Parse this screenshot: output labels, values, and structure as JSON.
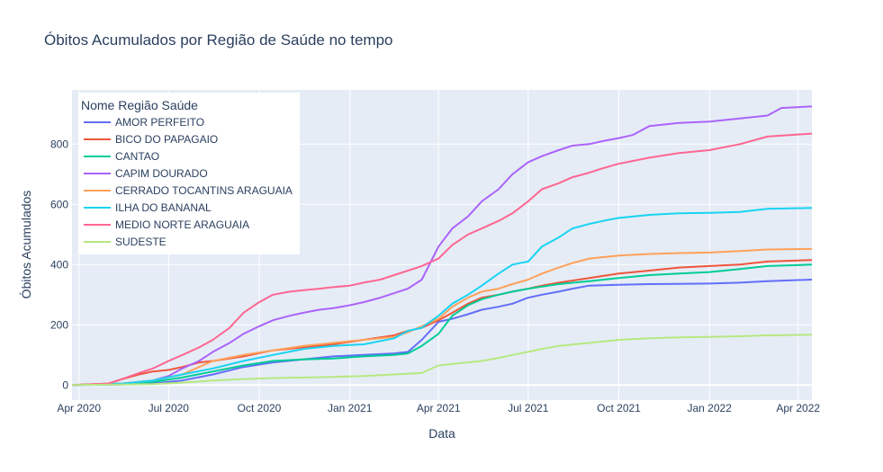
{
  "chart_data": {
    "type": "line",
    "title": "Óbitos Acumulados por Região de Saúde no tempo",
    "xlabel": "Data",
    "ylabel": "Óbitos Acumulados",
    "xlim": [
      "2020-03-25",
      "2022-04-15"
    ],
    "ylim": [
      -50,
      980
    ],
    "x_ticks": [
      {
        "date": "2020-04-01",
        "label": "Apr 2020"
      },
      {
        "date": "2020-07-01",
        "label": "Jul 2020"
      },
      {
        "date": "2020-10-01",
        "label": "Oct 2020"
      },
      {
        "date": "2021-01-01",
        "label": "Jan 2021"
      },
      {
        "date": "2021-04-01",
        "label": "Apr 2021"
      },
      {
        "date": "2021-07-01",
        "label": "Jul 2021"
      },
      {
        "date": "2021-10-01",
        "label": "Oct 2021"
      },
      {
        "date": "2022-01-01",
        "label": "Jan 2022"
      },
      {
        "date": "2022-04-01",
        "label": "Apr 2022"
      }
    ],
    "y_ticks": [
      0,
      200,
      400,
      600,
      800
    ],
    "grid": true,
    "legend": {
      "title": "Nome Região Saúde",
      "placement": "top-left"
    },
    "series": [
      {
        "name": "AMOR PERFEITO",
        "color": "#636efa",
        "x": [
          "2020-03-25",
          "2020-05-15",
          "2020-06-15",
          "2020-07-15",
          "2020-08-15",
          "2020-09-15",
          "2020-10-15",
          "2020-11-15",
          "2020-12-15",
          "2021-01-15",
          "2021-02-15",
          "2021-03-01",
          "2021-03-15",
          "2021-04-01",
          "2021-04-15",
          "2021-05-01",
          "2021-05-15",
          "2021-06-01",
          "2021-06-15",
          "2021-07-01",
          "2021-07-15",
          "2021-08-01",
          "2021-08-15",
          "2021-09-01",
          "2021-10-01",
          "2021-11-01",
          "2021-12-01",
          "2022-01-01",
          "2022-02-01",
          "2022-03-01",
          "2022-04-15"
        ],
        "y": [
          0,
          2,
          5,
          15,
          35,
          60,
          75,
          85,
          95,
          100,
          105,
          110,
          150,
          210,
          220,
          235,
          250,
          260,
          270,
          290,
          300,
          310,
          320,
          330,
          333,
          335,
          336,
          337,
          340,
          345,
          350
        ]
      },
      {
        "name": "BICO DO PAPAGAIO",
        "color": "#ef553b",
        "x": [
          "2020-03-25",
          "2020-05-01",
          "2020-05-15",
          "2020-06-01",
          "2020-06-15",
          "2020-07-01",
          "2020-07-15",
          "2020-08-01",
          "2020-08-15",
          "2020-09-15",
          "2020-10-15",
          "2020-11-15",
          "2020-12-15",
          "2021-01-15",
          "2021-02-15",
          "2021-03-01",
          "2021-03-15",
          "2021-04-01",
          "2021-04-15",
          "2021-05-01",
          "2021-05-15",
          "2021-06-01",
          "2021-06-15",
          "2021-07-01",
          "2021-07-15",
          "2021-08-01",
          "2021-09-01",
          "2021-10-01",
          "2021-11-01",
          "2021-12-01",
          "2022-01-01",
          "2022-02-01",
          "2022-03-01",
          "2022-04-15"
        ],
        "y": [
          0,
          5,
          20,
          35,
          45,
          50,
          60,
          75,
          80,
          95,
          115,
          125,
          135,
          150,
          165,
          180,
          190,
          215,
          240,
          270,
          290,
          300,
          310,
          320,
          330,
          340,
          355,
          370,
          380,
          390,
          395,
          400,
          410,
          415
        ]
      },
      {
        "name": "CANTAO",
        "color": "#00cc96",
        "x": [
          "2020-03-25",
          "2020-05-15",
          "2020-06-15",
          "2020-07-15",
          "2020-08-15",
          "2020-09-15",
          "2020-10-15",
          "2020-11-15",
          "2020-12-15",
          "2021-01-15",
          "2021-02-15",
          "2021-03-01",
          "2021-03-15",
          "2021-04-01",
          "2021-04-15",
          "2021-05-01",
          "2021-05-15",
          "2021-06-01",
          "2021-06-15",
          "2021-07-01",
          "2021-08-01",
          "2021-09-01",
          "2021-10-01",
          "2021-11-01",
          "2021-12-01",
          "2022-01-01",
          "2022-02-01",
          "2022-03-01",
          "2022-04-15"
        ],
        "y": [
          0,
          3,
          10,
          25,
          45,
          65,
          80,
          85,
          88,
          95,
          100,
          105,
          130,
          170,
          230,
          265,
          285,
          300,
          310,
          320,
          335,
          345,
          355,
          365,
          370,
          375,
          385,
          395,
          400
        ]
      },
      {
        "name": "CAPIM DOURADO",
        "color": "#ab63fa",
        "x": [
          "2020-03-25",
          "2020-05-15",
          "2020-06-15",
          "2020-07-01",
          "2020-07-15",
          "2020-08-01",
          "2020-08-15",
          "2020-09-01",
          "2020-09-15",
          "2020-10-01",
          "2020-10-15",
          "2020-11-01",
          "2020-11-15",
          "2020-12-01",
          "2020-12-15",
          "2021-01-01",
          "2021-01-15",
          "2021-02-01",
          "2021-02-15",
          "2021-03-01",
          "2021-03-15",
          "2021-04-01",
          "2021-04-15",
          "2021-05-01",
          "2021-05-15",
          "2021-06-01",
          "2021-06-15",
          "2021-07-01",
          "2021-07-15",
          "2021-08-01",
          "2021-08-15",
          "2021-09-01",
          "2021-09-15",
          "2021-10-01",
          "2021-10-15",
          "2021-11-01",
          "2021-12-01",
          "2022-01-01",
          "2022-02-01",
          "2022-03-01",
          "2022-03-15",
          "2022-04-15"
        ],
        "y": [
          0,
          5,
          15,
          30,
          55,
          80,
          110,
          140,
          170,
          195,
          215,
          230,
          240,
          250,
          255,
          265,
          275,
          290,
          305,
          320,
          350,
          460,
          520,
          560,
          610,
          650,
          700,
          740,
          760,
          780,
          795,
          800,
          810,
          820,
          830,
          860,
          870,
          875,
          885,
          895,
          920,
          925
        ]
      },
      {
        "name": "CERRADO TOCANTINS ARAGUAIA",
        "color": "#ffa15a",
        "x": [
          "2020-03-25",
          "2020-05-15",
          "2020-06-15",
          "2020-07-15",
          "2020-08-01",
          "2020-08-15",
          "2020-09-15",
          "2020-10-15",
          "2020-11-15",
          "2020-12-15",
          "2021-01-15",
          "2021-02-15",
          "2021-03-01",
          "2021-03-15",
          "2021-04-01",
          "2021-04-15",
          "2021-05-01",
          "2021-05-15",
          "2021-06-01",
          "2021-06-15",
          "2021-07-01",
          "2021-07-15",
          "2021-08-01",
          "2021-08-15",
          "2021-09-01",
          "2021-10-01",
          "2021-11-01",
          "2021-12-01",
          "2022-01-01",
          "2022-02-01",
          "2022-03-01",
          "2022-04-15"
        ],
        "y": [
          0,
          5,
          15,
          35,
          60,
          80,
          100,
          115,
          130,
          140,
          150,
          160,
          175,
          195,
          220,
          260,
          290,
          310,
          320,
          335,
          350,
          370,
          390,
          405,
          420,
          430,
          435,
          438,
          440,
          445,
          450,
          452
        ]
      },
      {
        "name": "ILHA DO BANANAL",
        "color": "#19d3f3",
        "x": [
          "2020-03-25",
          "2020-05-15",
          "2020-06-15",
          "2020-07-15",
          "2020-08-15",
          "2020-09-15",
          "2020-10-15",
          "2020-11-15",
          "2020-12-15",
          "2021-01-15",
          "2021-02-15",
          "2021-03-01",
          "2021-03-15",
          "2021-04-01",
          "2021-04-15",
          "2021-05-01",
          "2021-05-15",
          "2021-06-01",
          "2021-06-15",
          "2021-07-01",
          "2021-07-15",
          "2021-08-01",
          "2021-08-15",
          "2021-09-01",
          "2021-09-15",
          "2021-10-01",
          "2021-11-01",
          "2021-12-01",
          "2022-01-01",
          "2022-02-01",
          "2022-03-01",
          "2022-04-15"
        ],
        "y": [
          0,
          5,
          15,
          35,
          55,
          80,
          100,
          120,
          130,
          135,
          155,
          180,
          190,
          230,
          270,
          300,
          330,
          370,
          400,
          410,
          460,
          490,
          520,
          535,
          545,
          555,
          565,
          570,
          572,
          575,
          585,
          588
        ]
      },
      {
        "name": "MEDIO NORTE ARAGUAIA",
        "color": "#ff6692",
        "x": [
          "2020-03-25",
          "2020-05-01",
          "2020-05-15",
          "2020-06-01",
          "2020-06-15",
          "2020-07-01",
          "2020-07-15",
          "2020-08-01",
          "2020-08-15",
          "2020-09-01",
          "2020-09-15",
          "2020-10-01",
          "2020-10-15",
          "2020-11-01",
          "2020-11-15",
          "2020-12-01",
          "2020-12-15",
          "2021-01-01",
          "2021-01-15",
          "2021-02-01",
          "2021-02-15",
          "2021-03-01",
          "2021-03-15",
          "2021-04-01",
          "2021-04-15",
          "2021-05-01",
          "2021-05-15",
          "2021-06-01",
          "2021-06-15",
          "2021-07-01",
          "2021-07-15",
          "2021-08-01",
          "2021-08-15",
          "2021-09-01",
          "2021-09-15",
          "2021-10-01",
          "2021-11-01",
          "2021-12-01",
          "2022-01-01",
          "2022-02-01",
          "2022-03-01",
          "2022-04-15"
        ],
        "y": [
          0,
          5,
          20,
          40,
          55,
          80,
          100,
          125,
          150,
          190,
          240,
          275,
          300,
          310,
          315,
          320,
          325,
          330,
          340,
          350,
          365,
          380,
          395,
          420,
          465,
          500,
          520,
          545,
          570,
          610,
          650,
          670,
          690,
          705,
          720,
          735,
          755,
          770,
          780,
          800,
          825,
          835
        ]
      },
      {
        "name": "SUDESTE",
        "color": "#b6e880",
        "x": [
          "2020-03-25",
          "2020-06-15",
          "2020-07-15",
          "2020-08-15",
          "2020-09-15",
          "2020-10-15",
          "2020-11-15",
          "2020-12-15",
          "2021-01-15",
          "2021-02-15",
          "2021-03-15",
          "2021-04-01",
          "2021-04-15",
          "2021-05-01",
          "2021-05-15",
          "2021-06-01",
          "2021-06-15",
          "2021-07-01",
          "2021-07-15",
          "2021-08-01",
          "2021-09-01",
          "2021-10-01",
          "2021-11-01",
          "2021-12-01",
          "2022-01-01",
          "2022-02-01",
          "2022-03-01",
          "2022-04-15"
        ],
        "y": [
          0,
          3,
          8,
          15,
          20,
          23,
          25,
          27,
          30,
          35,
          40,
          65,
          70,
          75,
          80,
          90,
          100,
          110,
          120,
          130,
          140,
          150,
          155,
          158,
          160,
          162,
          165,
          167
        ]
      }
    ]
  }
}
